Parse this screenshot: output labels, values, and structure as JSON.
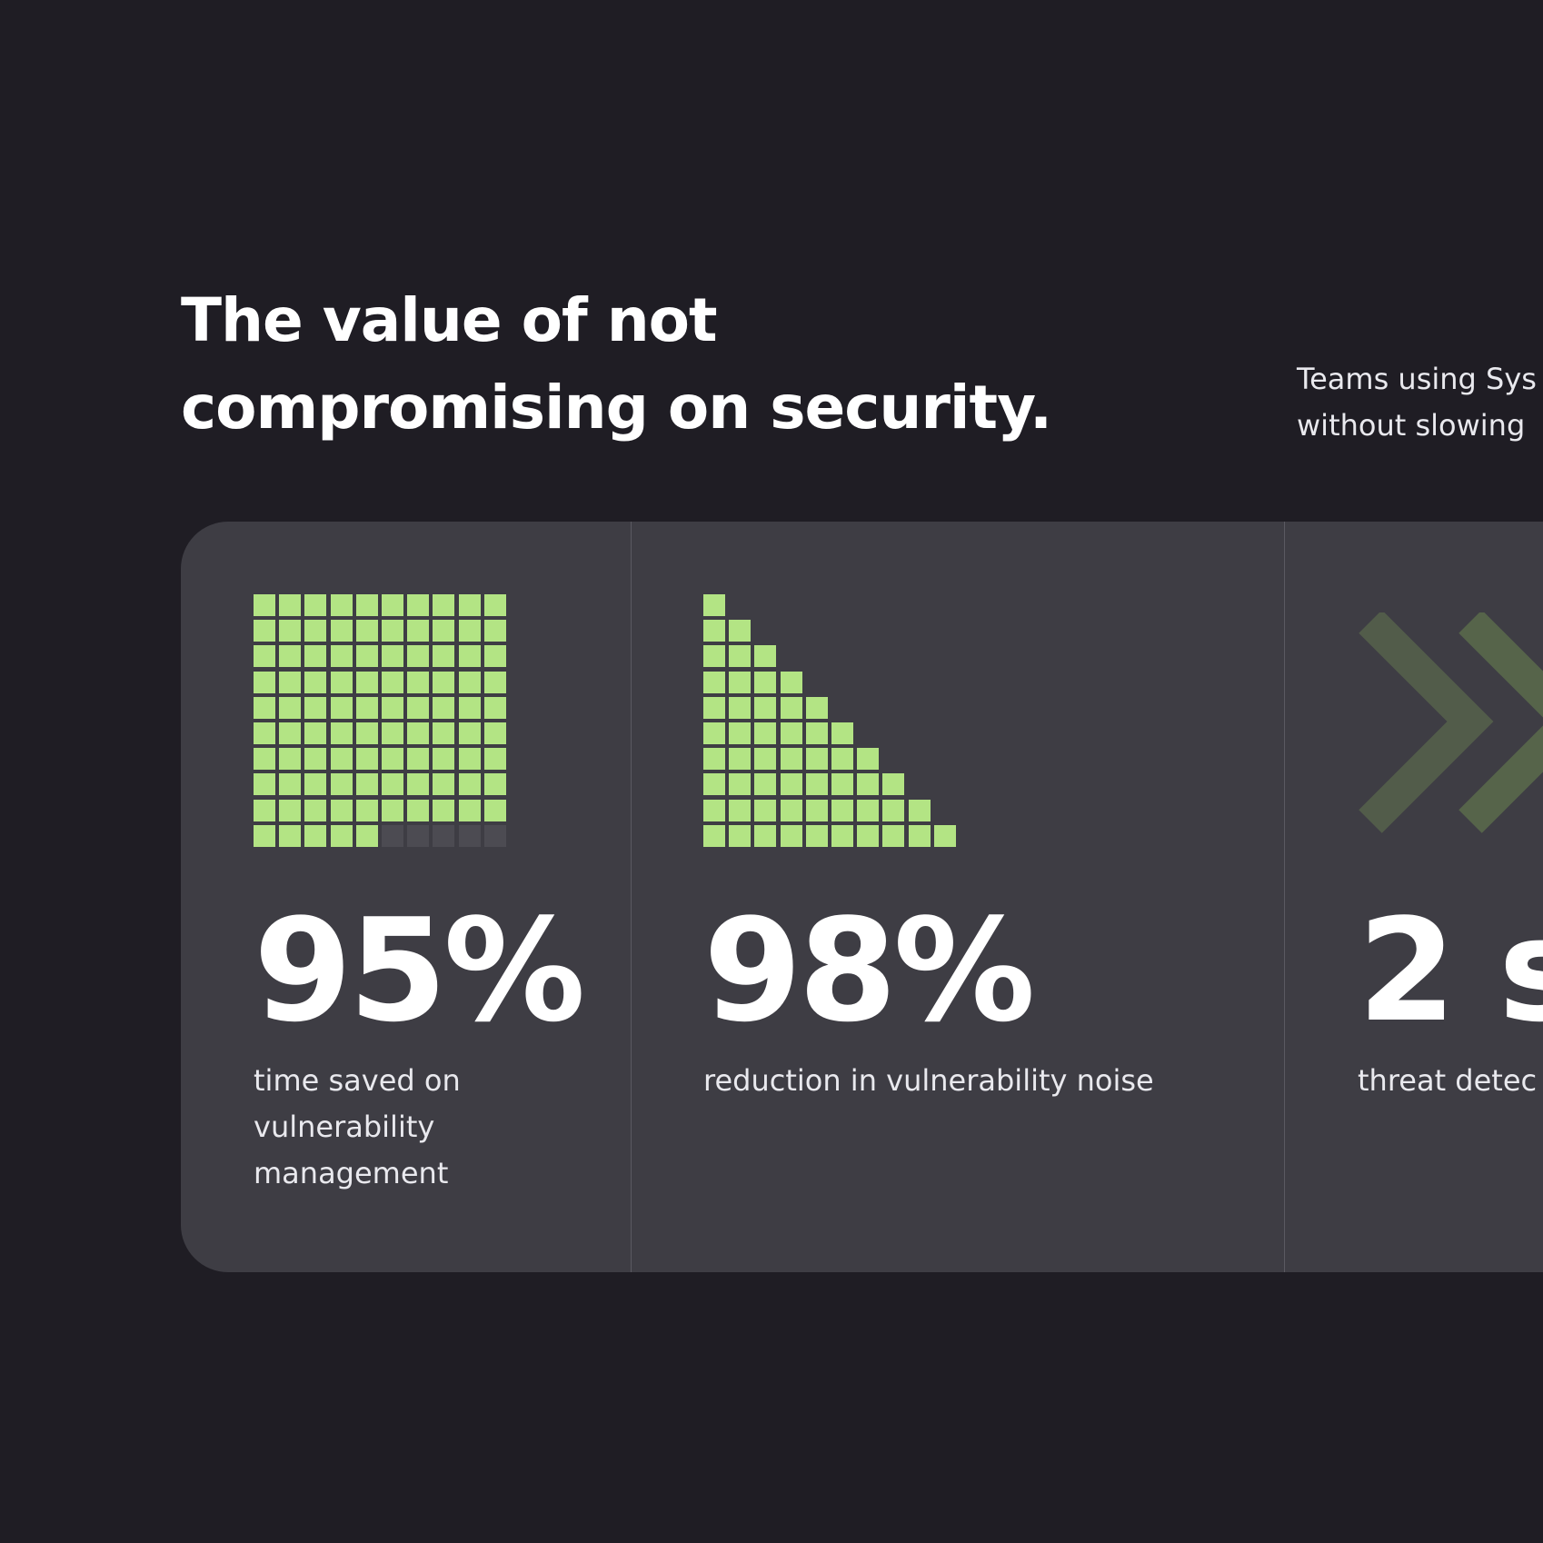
{
  "heading": {
    "lines": [
      "The value of not",
      "compromising on security."
    ]
  },
  "intro": {
    "lines": [
      "Teams using Sys",
      "without slowing"
    ]
  },
  "stats": [
    {
      "value": "95%",
      "label_lines": [
        "time saved on",
        "vulnerability",
        "management"
      ],
      "figure": "square-grid",
      "filled_cells": 95,
      "total_cells": 100
    },
    {
      "value": "98%",
      "label_lines": [
        "reduction in vulnerability noise"
      ],
      "figure": "staircase-grid"
    },
    {
      "value": "2 s",
      "label_lines": [
        "threat detec"
      ],
      "figure": "chevron-right-icon"
    }
  ],
  "colors": {
    "background": "#1f1d24",
    "panel": "#3e3d44",
    "accent": "#b3e484",
    "grid_empty": "#4c4b52",
    "chevron": "#525c4a"
  }
}
